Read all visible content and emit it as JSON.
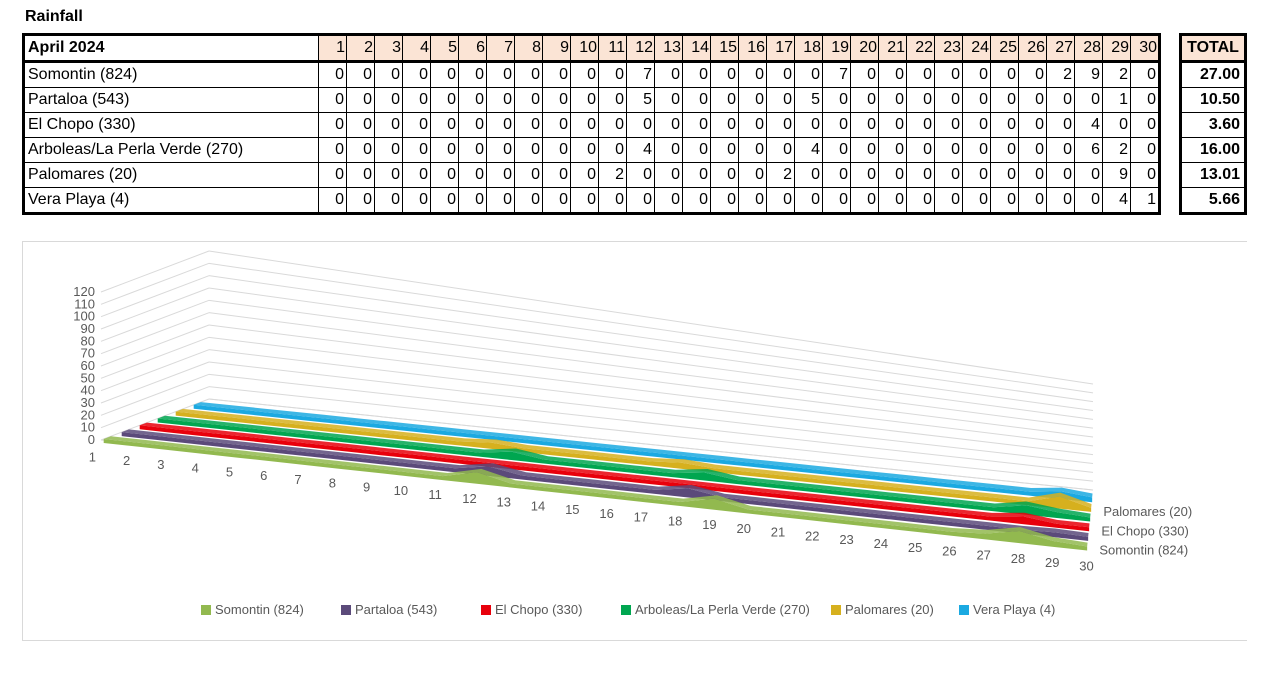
{
  "table": {
    "title": "Rainfall",
    "header_label": "April 2024",
    "days": [
      "1",
      "2",
      "3",
      "4",
      "5",
      "6",
      "7",
      "8",
      "9",
      "10",
      "11",
      "12",
      "13",
      "14",
      "15",
      "16",
      "17",
      "18",
      "19",
      "20",
      "21",
      "22",
      "23",
      "24",
      "25",
      "26",
      "27",
      "28",
      "29",
      "30"
    ],
    "total_label": "TOTAL",
    "rows": [
      {
        "station": "Somontin (824)",
        "values": [
          0,
          0,
          0,
          0,
          0,
          0,
          0,
          0,
          0,
          0,
          0,
          7,
          0,
          0,
          0,
          0,
          0,
          0,
          7,
          0,
          0,
          0,
          0,
          0,
          0,
          0,
          2,
          9,
          2,
          0
        ],
        "total": "27.00"
      },
      {
        "station": "Partaloa (543)",
        "values": [
          0,
          0,
          0,
          0,
          0,
          0,
          0,
          0,
          0,
          0,
          0,
          5,
          0,
          0,
          0,
          0,
          0,
          5,
          0,
          0,
          0,
          0,
          0,
          0,
          0,
          0,
          0,
          0,
          1,
          0
        ],
        "total": "10.50"
      },
      {
        "station": "El Chopo (330)",
        "values": [
          0,
          0,
          0,
          0,
          0,
          0,
          0,
          0,
          0,
          0,
          0,
          0,
          0,
          0,
          0,
          0,
          0,
          0,
          0,
          0,
          0,
          0,
          0,
          0,
          0,
          0,
          0,
          4,
          0,
          0
        ],
        "total": "3.60"
      },
      {
        "station": "Arboleas/La Perla Verde (270)",
        "values": [
          0,
          0,
          0,
          0,
          0,
          0,
          0,
          0,
          0,
          0,
          0,
          4,
          0,
          0,
          0,
          0,
          0,
          4,
          0,
          0,
          0,
          0,
          0,
          0,
          0,
          0,
          0,
          6,
          2,
          0
        ],
        "total": "16.00"
      },
      {
        "station": "Palomares (20)",
        "values": [
          0,
          0,
          0,
          0,
          0,
          0,
          0,
          0,
          0,
          0,
          2,
          0,
          0,
          0,
          0,
          0,
          2,
          0,
          0,
          0,
          0,
          0,
          0,
          0,
          0,
          0,
          0,
          0,
          9,
          0
        ],
        "total": "13.01"
      },
      {
        "station": "Vera Playa (4)",
        "values": [
          0,
          0,
          0,
          0,
          0,
          0,
          0,
          0,
          0,
          0,
          0,
          0,
          0,
          0,
          0,
          0,
          0,
          0,
          0,
          0,
          0,
          0,
          0,
          0,
          0,
          0,
          0,
          0,
          4,
          1
        ],
        "total": "5.66"
      }
    ]
  },
  "chart_data": {
    "type": "area",
    "subtype": "3d-area",
    "categories": [
      "1",
      "2",
      "3",
      "4",
      "5",
      "6",
      "7",
      "8",
      "9",
      "10",
      "11",
      "12",
      "13",
      "14",
      "15",
      "16",
      "17",
      "18",
      "19",
      "20",
      "21",
      "22",
      "23",
      "24",
      "25",
      "26",
      "27",
      "28",
      "29",
      "30"
    ],
    "ylim": [
      0,
      120
    ],
    "yticks": [
      "0",
      "10",
      "20",
      "30",
      "40",
      "50",
      "60",
      "70",
      "80",
      "90",
      "100",
      "110",
      "120"
    ],
    "grid": true,
    "legend_position": "bottom",
    "depth_axis_labels": [
      "Somontin (824)",
      "El Chopo (330)",
      "Palomares (20)"
    ],
    "series": [
      {
        "name": "Somontin (824)",
        "color": "#92b94f",
        "values": [
          0,
          0,
          0,
          0,
          0,
          0,
          0,
          0,
          0,
          0,
          0,
          7,
          0,
          0,
          0,
          0,
          0,
          0,
          7,
          0,
          0,
          0,
          0,
          0,
          0,
          0,
          2,
          9,
          2,
          0
        ]
      },
      {
        "name": "Partaloa (543)",
        "color": "#5b4a7a",
        "values": [
          0,
          0,
          0,
          0,
          0,
          0,
          0,
          0,
          0,
          0,
          0,
          5,
          0,
          0,
          0,
          0,
          0,
          5,
          0,
          0,
          0,
          0,
          0,
          0,
          0,
          0,
          0,
          0,
          1,
          0
        ]
      },
      {
        "name": "El Chopo (330)",
        "color": "#e8000b",
        "values": [
          0,
          0,
          0,
          0,
          0,
          0,
          0,
          0,
          0,
          0,
          0,
          0,
          0,
          0,
          0,
          0,
          0,
          0,
          0,
          0,
          0,
          0,
          0,
          0,
          0,
          0,
          0,
          4,
          0,
          0
        ]
      },
      {
        "name": "Arboleas/La Perla Verde (270)",
        "color": "#00a650",
        "values": [
          0,
          0,
          0,
          0,
          0,
          0,
          0,
          0,
          0,
          0,
          0,
          4,
          0,
          0,
          0,
          0,
          0,
          4,
          0,
          0,
          0,
          0,
          0,
          0,
          0,
          0,
          0,
          6,
          2,
          0
        ]
      },
      {
        "name": "Palomares (20)",
        "color": "#d6b01e",
        "values": [
          0,
          0,
          0,
          0,
          0,
          0,
          0,
          0,
          0,
          0,
          2,
          0,
          0,
          0,
          0,
          0,
          2,
          0,
          0,
          0,
          0,
          0,
          0,
          0,
          0,
          0,
          0,
          0,
          9,
          0
        ]
      },
      {
        "name": "Vera Playa (4)",
        "color": "#1ba9e1",
        "values": [
          0,
          0,
          0,
          0,
          0,
          0,
          0,
          0,
          0,
          0,
          0,
          0,
          0,
          0,
          0,
          0,
          0,
          0,
          0,
          0,
          0,
          0,
          0,
          0,
          0,
          0,
          0,
          0,
          4,
          1
        ]
      }
    ]
  }
}
